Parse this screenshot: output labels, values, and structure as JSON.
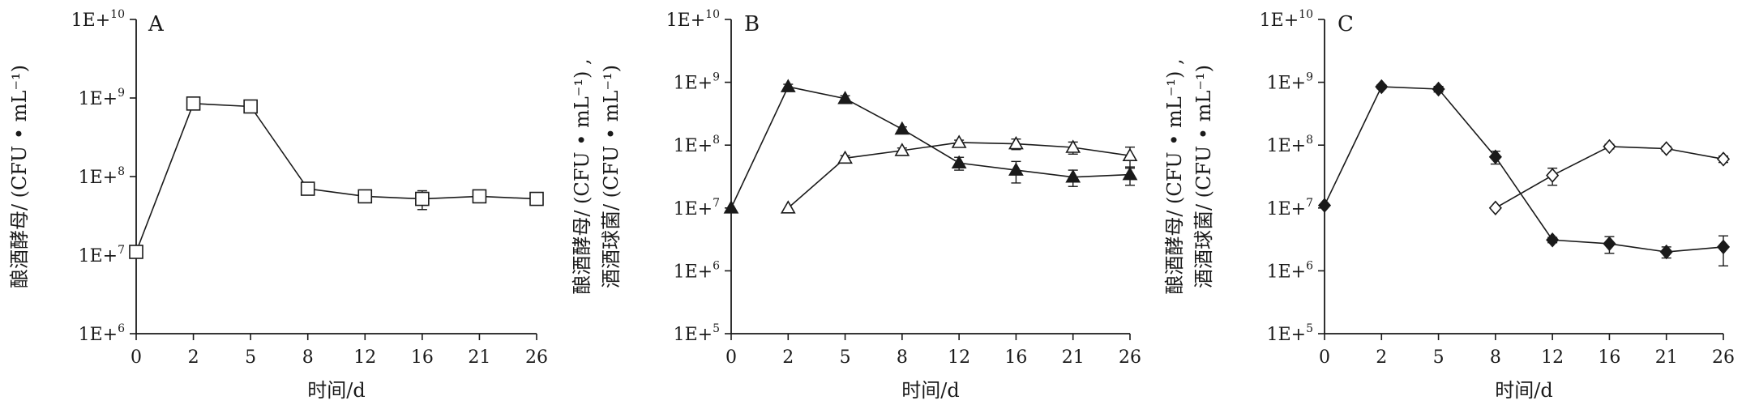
{
  "chart_data": [
    {
      "type": "line",
      "panel_label": "A",
      "ylabel_lines": [
        "酿酒酵母/ (CFU • mL⁻¹)"
      ],
      "xlabel": "时间/d",
      "y_scale": "log",
      "ylim": [
        1000000,
        10000000000
      ],
      "y_ticks": [
        {
          "base": "1E+10",
          "exp": "10",
          "value": 10000000000
        },
        {
          "base": "1E+10",
          "exp": "9",
          "value": 1000000000
        },
        {
          "base": "1E+10",
          "exp": "8",
          "value": 100000000
        },
        {
          "base": "1E+10",
          "exp": "7",
          "value": 10000000
        },
        {
          "base": "1E+10",
          "exp": "6",
          "value": 1000000
        }
      ],
      "categories": [
        "0",
        "2",
        "5",
        "8",
        "12",
        "16",
        "21",
        "26"
      ],
      "series": [
        {
          "marker": "square-open",
          "points": [
            {
              "x": 0,
              "y": 11000000,
              "err": 0
            },
            {
              "x": 1,
              "y": 850000000,
              "err": 120000000
            },
            {
              "x": 2,
              "y": 780000000,
              "err": 80000000
            },
            {
              "x": 3,
              "y": 70000000,
              "err": 10000000
            },
            {
              "x": 4,
              "y": 56000000,
              "err": 6000000
            },
            {
              "x": 5,
              "y": 52000000,
              "err": 14000000
            },
            {
              "x": 6,
              "y": 56000000,
              "err": 8000000
            },
            {
              "x": 7,
              "y": 52000000,
              "err": 8000000
            }
          ]
        }
      ]
    },
    {
      "type": "line",
      "panel_label": "B",
      "ylabel_lines": [
        "酿酒酵母/ (CFU • mL⁻¹) ,",
        "酒酒球菌/ (CFU • mL⁻¹)"
      ],
      "xlabel": "时间/d",
      "y_scale": "log",
      "ylim": [
        100000,
        10000000000
      ],
      "y_ticks": [
        {
          "base": "1E+10",
          "exp": "10",
          "value": 10000000000
        },
        {
          "base": "1E+10",
          "exp": "9",
          "value": 1000000000
        },
        {
          "base": "1E+10",
          "exp": "8",
          "value": 100000000
        },
        {
          "base": "1E+10",
          "exp": "7",
          "value": 10000000
        },
        {
          "base": "1E+10",
          "exp": "6",
          "value": 1000000
        },
        {
          "base": "1E+10",
          "exp": "5",
          "value": 100000
        }
      ],
      "categories": [
        "0",
        "2",
        "5",
        "8",
        "12",
        "16",
        "21",
        "26"
      ],
      "series": [
        {
          "marker": "triangle-filled",
          "points": [
            {
              "x": 0,
              "y": 10000000,
              "err": 0
            },
            {
              "x": 1,
              "y": 850000000,
              "err": 80000000
            },
            {
              "x": 2,
              "y": 550000000,
              "err": 60000000
            },
            {
              "x": 3,
              "y": 180000000,
              "err": 15000000
            },
            {
              "x": 4,
              "y": 52000000,
              "err": 12000000
            },
            {
              "x": 5,
              "y": 40000000,
              "err": 15000000
            },
            {
              "x": 6,
              "y": 31000000,
              "err": 9000000
            },
            {
              "x": 7,
              "y": 34000000,
              "err": 11000000
            }
          ]
        },
        {
          "marker": "triangle-open",
          "points": [
            {
              "x": 1,
              "y": 10000000,
              "err": 0
            },
            {
              "x": 2,
              "y": 62000000,
              "err": 6000000
            },
            {
              "x": 3,
              "y": 82000000,
              "err": 8000000
            },
            {
              "x": 4,
              "y": 110000000,
              "err": 10000000
            },
            {
              "x": 5,
              "y": 105000000,
              "err": 20000000
            },
            {
              "x": 6,
              "y": 92000000,
              "err": 20000000
            },
            {
              "x": 7,
              "y": 68000000,
              "err": 25000000
            }
          ]
        }
      ]
    },
    {
      "type": "line",
      "panel_label": "C",
      "ylabel_lines": [
        "酿酒酵母/ (CFU • mL⁻¹) ,",
        "酒酒球菌/ (CFU • mL⁻¹)"
      ],
      "xlabel": "时间/d",
      "y_scale": "log",
      "ylim": [
        100000,
        10000000000
      ],
      "y_ticks": [
        {
          "base": "1E+10",
          "exp": "10",
          "value": 10000000000
        },
        {
          "base": "1E+10",
          "exp": "9",
          "value": 1000000000
        },
        {
          "base": "1E+10",
          "exp": "8",
          "value": 100000000
        },
        {
          "base": "1E+10",
          "exp": "7",
          "value": 10000000
        },
        {
          "base": "1E+10",
          "exp": "6",
          "value": 1000000
        },
        {
          "base": "1E+10",
          "exp": "5",
          "value": 100000
        }
      ],
      "categories": [
        "0",
        "2",
        "5",
        "8",
        "12",
        "16",
        "21",
        "26"
      ],
      "series": [
        {
          "marker": "diamond-filled",
          "points": [
            {
              "x": 0,
              "y": 11000000,
              "err": 0
            },
            {
              "x": 1,
              "y": 850000000,
              "err": 60000000
            },
            {
              "x": 2,
              "y": 780000000,
              "err": 80000000
            },
            {
              "x": 3,
              "y": 65000000,
              "err": 15000000
            },
            {
              "x": 4,
              "y": 3100000,
              "err": 300000
            },
            {
              "x": 5,
              "y": 2700000,
              "err": 800000
            },
            {
              "x": 6,
              "y": 2000000,
              "err": 400000
            },
            {
              "x": 7,
              "y": 2400000,
              "err": 1200000
            }
          ]
        },
        {
          "marker": "diamond-open",
          "points": [
            {
              "x": 3,
              "y": 10000000,
              "err": 0
            },
            {
              "x": 4,
              "y": 33000000,
              "err": 10000000
            },
            {
              "x": 5,
              "y": 95000000,
              "err": 8000000
            },
            {
              "x": 6,
              "y": 88000000,
              "err": 8000000
            },
            {
              "x": 7,
              "y": 60000000,
              "err": 7000000
            }
          ]
        }
      ]
    }
  ]
}
